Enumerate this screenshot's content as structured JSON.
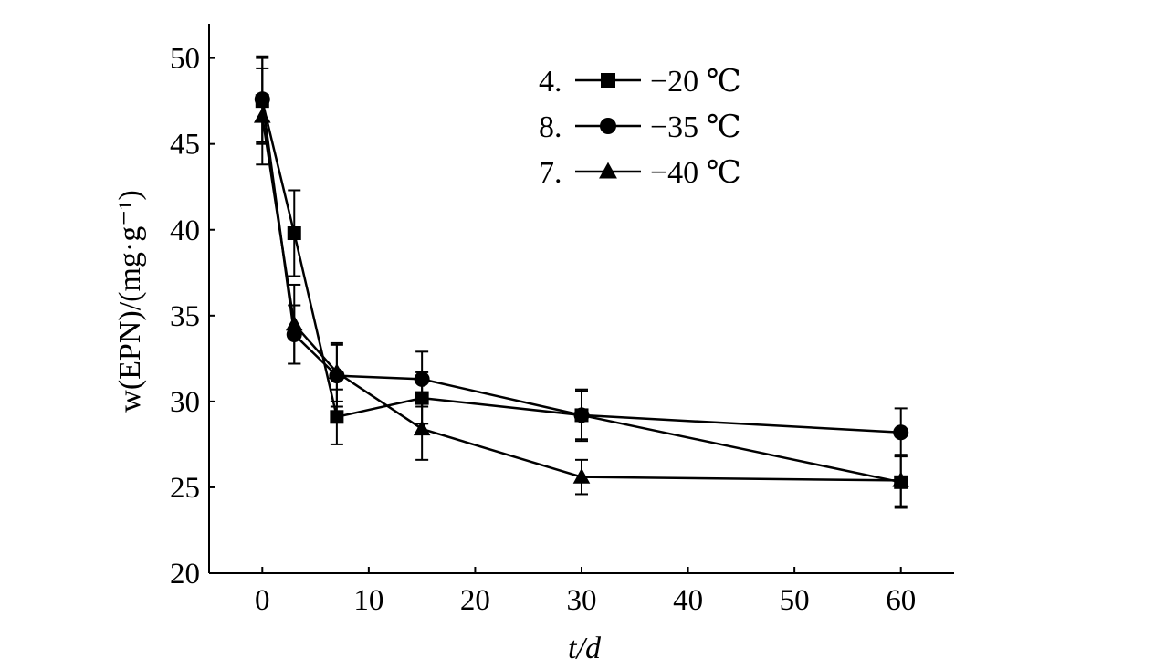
{
  "chart_data": {
    "type": "line",
    "title": "",
    "xlabel": "t/d",
    "ylabel": "w(EPN)/(mg·g⁻¹)",
    "xlim": [
      -5,
      65
    ],
    "ylim": [
      20,
      52
    ],
    "xticks": [
      0,
      10,
      20,
      30,
      40,
      50,
      60
    ],
    "yticks": [
      20,
      25,
      30,
      35,
      40,
      45,
      50
    ],
    "grid": false,
    "legend_position": "top-center",
    "series": [
      {
        "name": "−20 ℃",
        "legend_index": "4.",
        "marker": "square",
        "x": [
          0,
          3,
          7,
          15,
          30,
          60
        ],
        "values": [
          47.5,
          39.8,
          29.1,
          30.2,
          29.2,
          25.3
        ],
        "errors": [
          2.5,
          2.5,
          1.6,
          1.5,
          1.5,
          1.5
        ]
      },
      {
        "name": "−35 ℃",
        "legend_index": "8.",
        "marker": "circle",
        "x": [
          0,
          3,
          7,
          15,
          30,
          60
        ],
        "values": [
          47.6,
          33.9,
          31.5,
          31.3,
          29.2,
          28.2
        ],
        "errors": [
          2.5,
          1.7,
          1.8,
          1.6,
          1.4,
          1.4
        ]
      },
      {
        "name": "−40 ℃",
        "legend_index": "7.",
        "marker": "triangle",
        "x": [
          0,
          3,
          7,
          15,
          30,
          60
        ],
        "values": [
          46.6,
          34.5,
          31.7,
          28.4,
          25.6,
          25.4
        ],
        "errors": [
          2.8,
          2.3,
          1.7,
          1.8,
          1.0,
          1.5
        ]
      }
    ]
  }
}
